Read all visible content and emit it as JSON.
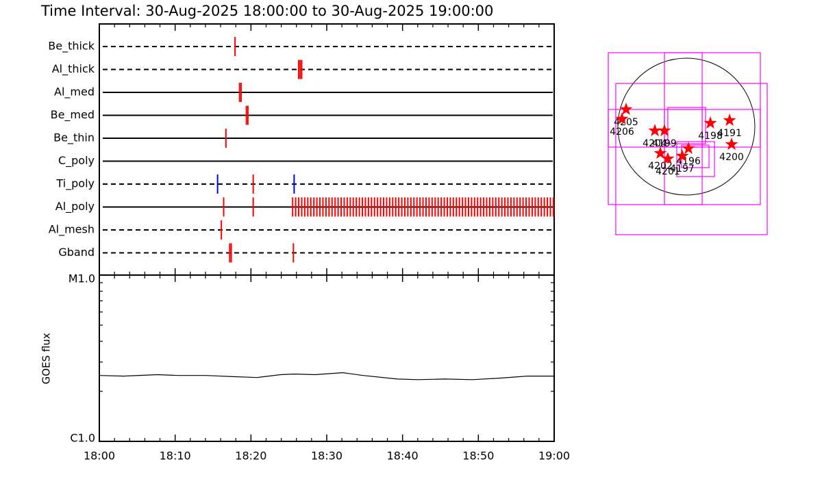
{
  "chart_data": [
    {
      "type": "timeline",
      "title": "Time Interval: 30-Aug-2025 18:00:00 to 30-Aug-2025 19:00:00",
      "xlim": [
        0,
        60
      ],
      "rows": [
        {
          "name": "Be_thick",
          "style": "dashed",
          "events": [
            {
              "color": "#ff0000",
              "times": [
                17.9
              ]
            }
          ]
        },
        {
          "name": "Al_thick",
          "style": "dashed",
          "events": [
            {
              "color": "#ff0000",
              "times": [
                26.3,
                26.5,
                26.7
              ]
            }
          ]
        },
        {
          "name": "Al_med",
          "style": "solid",
          "events": [
            {
              "color": "#ff0000",
              "times": [
                18.5,
                18.7
              ]
            }
          ]
        },
        {
          "name": "Be_med",
          "style": "solid",
          "events": [
            {
              "color": "#ff0000",
              "times": [
                19.4,
                19.6
              ]
            }
          ]
        },
        {
          "name": "Be_thin",
          "style": "solid",
          "events": [
            {
              "color": "#ff0000",
              "times": [
                16.7
              ]
            }
          ]
        },
        {
          "name": "C_poly",
          "style": "solid",
          "events": []
        },
        {
          "name": "Ti_poly",
          "style": "dashed",
          "events": [
            {
              "color": "#0000ff",
              "times": [
                15.6,
                25.7
              ]
            },
            {
              "color": "#ff0000",
              "times": [
                20.3
              ]
            }
          ]
        },
        {
          "name": "Al_poly",
          "style": "solid",
          "events": [
            {
              "color": "#ff0000",
              "times": [
                16.4,
                20.3,
                25.5,
                25.9,
                26.3,
                26.7,
                27.1,
                27.5,
                27.9,
                28.3,
                28.7,
                29.1,
                29.5,
                29.9,
                30.3,
                30.7,
                31.1,
                31.5,
                31.9,
                32.3,
                32.7,
                33.1,
                33.5,
                33.9,
                34.3,
                34.7,
                35.1,
                35.5,
                35.9,
                36.3,
                36.7,
                37.1,
                37.5,
                37.9,
                38.3,
                38.7,
                39.1,
                39.5,
                39.9,
                40.3,
                40.7,
                41.1,
                41.5,
                41.9,
                42.3,
                42.7,
                43.1,
                43.5,
                43.9,
                44.3,
                44.7,
                45.1,
                45.5,
                45.9,
                46.3,
                46.7,
                47.1,
                47.5,
                47.9,
                48.3,
                48.7,
                49.1,
                49.5,
                49.9,
                50.3,
                50.7,
                51.1,
                51.5,
                51.9,
                52.3,
                52.7,
                53.1,
                53.5,
                53.9,
                54.3,
                54.7,
                55.1,
                55.5,
                55.9,
                56.3,
                56.7,
                57.1,
                57.5,
                57.9,
                58.3,
                58.7,
                59.1,
                59.5,
                59.9
              ]
            }
          ]
        },
        {
          "name": "Al_mesh",
          "style": "dashed",
          "events": [
            {
              "color": "#ff0000",
              "times": [
                16.1
              ]
            }
          ]
        },
        {
          "name": "Gband",
          "style": "dashed",
          "events": [
            {
              "color": "#ff0000",
              "times": [
                17.2,
                17.4,
                25.6
              ]
            }
          ]
        }
      ]
    },
    {
      "type": "line",
      "ylabel": "GOES flux",
      "log": true,
      "color": "#000000",
      "xlim": [
        0,
        60
      ],
      "xticks": [
        {
          "value": 0,
          "label": "18:00"
        },
        {
          "value": 10,
          "label": "18:10"
        },
        {
          "value": 20,
          "label": "18:20"
        },
        {
          "value": 30,
          "label": "18:30"
        },
        {
          "value": 40,
          "label": "18:40"
        },
        {
          "value": 50,
          "label": "18:50"
        },
        {
          "value": 60,
          "label": "19:00"
        }
      ],
      "xminor": [
        2,
        4,
        6,
        8,
        12,
        14,
        16,
        18,
        22,
        24,
        26,
        28,
        32,
        34,
        36,
        38,
        42,
        44,
        46,
        48,
        52,
        54,
        56,
        58
      ],
      "ylim": [
        1e-06,
        1e-05
      ],
      "yticks": [
        {
          "value": 1e-06,
          "label": "C1.0"
        },
        {
          "value": 1e-05,
          "label": "M1.0"
        }
      ],
      "yminor": [
        2e-06,
        3e-06,
        4e-06,
        5e-06,
        6e-06,
        7e-06,
        8e-06,
        9e-06
      ],
      "x": [
        0,
        3.2,
        7.7,
        10.4,
        14,
        17.6,
        20.8,
        23.9,
        25.7,
        28.5,
        32.1,
        34.8,
        39.3,
        42,
        45.6,
        49.2,
        52.8,
        56.5,
        60
      ],
      "values": [
        2.49e-06,
        2.47e-06,
        2.52e-06,
        2.49e-06,
        2.49e-06,
        2.45e-06,
        2.42e-06,
        2.52e-06,
        2.54e-06,
        2.52e-06,
        2.59e-06,
        2.49e-06,
        2.37e-06,
        2.35e-06,
        2.37e-06,
        2.35e-06,
        2.4e-06,
        2.47e-06,
        2.47e-06
      ]
    },
    {
      "type": "map",
      "solar_radius": 950,
      "box_color": "#ff00ff",
      "star_color": "#ff0000",
      "boxes": [
        {
          "x": [
            -1083,
            219
          ],
          "y": [
            -285,
            1026
          ]
        },
        {
          "x": [
            -304,
            1026
          ],
          "y": [
            -285,
            1026
          ]
        },
        {
          "x": [
            -1083,
            219
          ],
          "y": [
            -1083,
            238
          ]
        },
        {
          "x": [
            -304,
            1026
          ],
          "y": [
            -1083,
            238
          ]
        },
        {
          "x": [
            -979,
            1121
          ],
          "y": [
            -1501,
            599
          ]
        },
        {
          "x": [
            -257,
            266
          ],
          "y": [
            -238,
            266
          ]
        },
        {
          "x": [
            -133,
            390
          ],
          "y": [
            -694,
            -209
          ]
        },
        {
          "x": [
            -67,
            314
          ],
          "y": [
            -570,
            -257
          ]
        }
      ],
      "regions": [
        {
          "label": "4205",
          "x": -836,
          "y": 238
        },
        {
          "label": "4206",
          "x": -893,
          "y": 105
        },
        {
          "label": "4204",
          "x": -437,
          "y": -57
        },
        {
          "label": "4199",
          "x": -304,
          "y": -57
        },
        {
          "label": "4198",
          "x": 333,
          "y": 48
        },
        {
          "label": "4191",
          "x": 599,
          "y": 86
        },
        {
          "label": "4200",
          "x": 627,
          "y": -247
        },
        {
          "label": "4196",
          "x": 29,
          "y": -304
        },
        {
          "label": "4202",
          "x": -361,
          "y": -371
        },
        {
          "label": "4201",
          "x": -257,
          "y": -447
        },
        {
          "label": "4197",
          "x": -57,
          "y": -409
        }
      ]
    }
  ]
}
